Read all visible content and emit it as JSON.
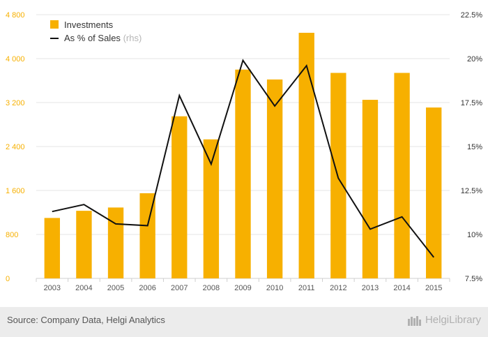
{
  "chart_data": {
    "type": "bar+line",
    "categories": [
      "2003",
      "2004",
      "2005",
      "2006",
      "2007",
      "2008",
      "2009",
      "2010",
      "2011",
      "2012",
      "2013",
      "2014",
      "2015"
    ],
    "series": [
      {
        "name": "Investments",
        "type": "bar",
        "axis": "left",
        "color": "#f7b000",
        "values": [
          1100,
          1230,
          1290,
          1550,
          2950,
          2530,
          3800,
          3620,
          4470,
          3740,
          3250,
          3740,
          3110
        ]
      },
      {
        "name": "As % of Sales",
        "name_suffix": "(rhs)",
        "type": "line",
        "axis": "right",
        "color": "#111111",
        "values": [
          11.3,
          11.7,
          10.6,
          10.5,
          17.9,
          14.0,
          19.9,
          17.3,
          19.6,
          13.2,
          10.3,
          11.0,
          8.7
        ]
      }
    ],
    "y_left": {
      "min": 0,
      "max": 4800,
      "ticks": [
        0,
        800,
        1600,
        2400,
        3200,
        4000,
        4800
      ],
      "tick_labels": [
        "0",
        "800",
        "1 600",
        "2 400",
        "3 200",
        "4 000",
        "4 800"
      ],
      "label_color": "#f7b000"
    },
    "y_right": {
      "min": 7.5,
      "max": 22.5,
      "ticks": [
        7.5,
        10,
        12.5,
        15,
        17.5,
        20,
        22.5
      ],
      "tick_labels": [
        "7.5%",
        "10%",
        "12.5%",
        "15%",
        "17.5%",
        "20%",
        "22.5%"
      ]
    },
    "legend_position": "top-left",
    "grid": true
  },
  "footer": {
    "source": "Source: Company Data, Helgi Analytics",
    "brand": "HelgiLibrary"
  }
}
